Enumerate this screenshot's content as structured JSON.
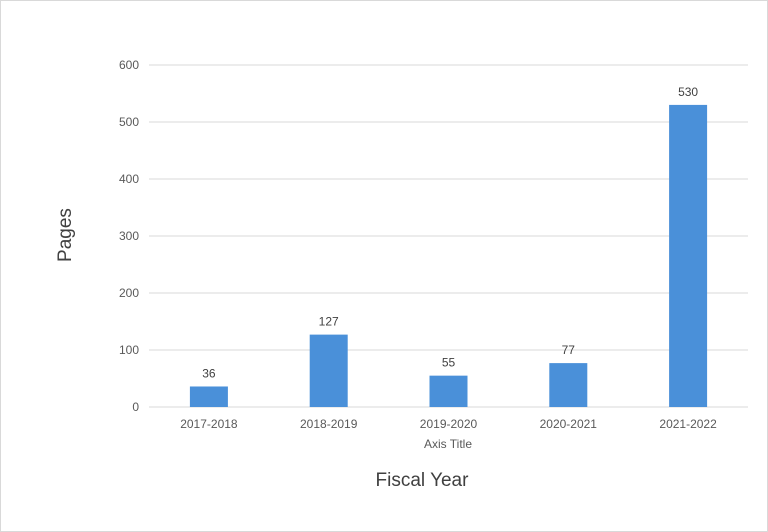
{
  "chart_data": {
    "type": "bar",
    "categories": [
      "2017-2018",
      "2018-2019",
      "2019-2020",
      "2020-2021",
      "2021-2022"
    ],
    "values": [
      36,
      127,
      55,
      77,
      530
    ],
    "xlabel": "Axis Title",
    "xlabel_outer": "Fiscal Year",
    "ylabel": "Pages",
    "ylim": [
      0,
      600
    ],
    "yticks": [
      0,
      100,
      200,
      300,
      400,
      500,
      600
    ],
    "grid": true,
    "legend": false,
    "bar_color": "#4a90d9",
    "gridline_color": "#d9d9d9"
  }
}
